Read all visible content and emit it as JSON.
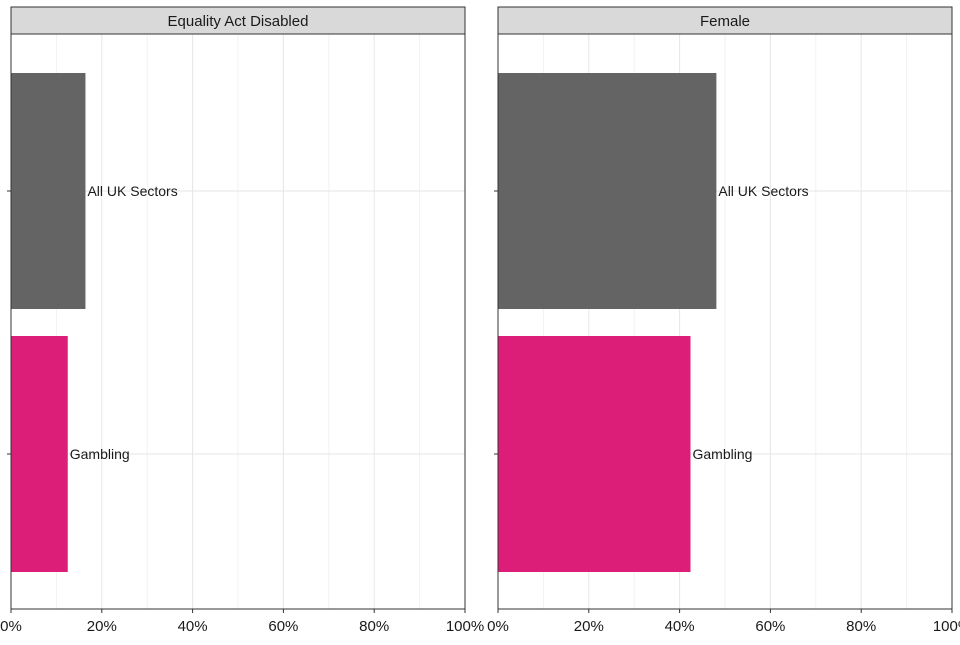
{
  "chart_data": {
    "type": "bar",
    "orientation": "horizontal",
    "categories": [
      "All UK Sectors",
      "Gambling"
    ],
    "colors": {
      "All UK Sectors": "#646464",
      "Gambling": "#dc1e78"
    },
    "panel_strip_fill": "#d9d9d9",
    "xlim": [
      0,
      100
    ],
    "x_ticks": [
      0,
      20,
      40,
      60,
      80,
      100
    ],
    "x_tick_labels": [
      "0%",
      "20%",
      "40%",
      "60%",
      "80%",
      "100%"
    ],
    "grid": true,
    "legend": "none",
    "panels": [
      {
        "title": "Equality Act Disabled",
        "series": [
          {
            "category": "All UK Sectors",
            "value": 16.4
          },
          {
            "category": "Gambling",
            "value": 12.5
          }
        ]
      },
      {
        "title": "Female",
        "series": [
          {
            "category": "All UK Sectors",
            "value": 48.1
          },
          {
            "category": "Gambling",
            "value": 42.4
          }
        ]
      }
    ]
  }
}
